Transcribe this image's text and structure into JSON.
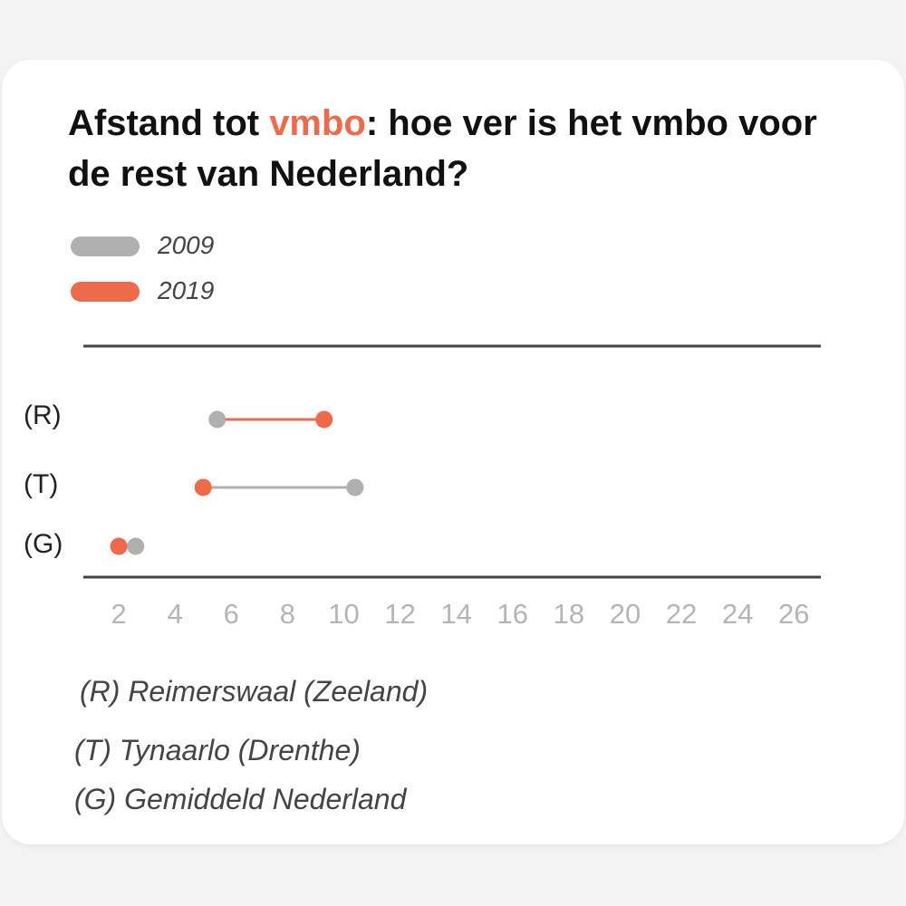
{
  "title": {
    "part1": "Afstand tot ",
    "highlight": "vmbo",
    "part2": ": hoe ver is het vmbo voor de rest van Nederland?"
  },
  "colors": {
    "accent": "#ee6a4a",
    "series_2009": "#b0b0b0",
    "series_2019": "#ee6a4a",
    "axis_line": "#444444"
  },
  "legend": [
    {
      "label": "2009",
      "color": "#b0b0b0"
    },
    {
      "label": "2019",
      "color": "#ee6a4a"
    }
  ],
  "chart_data": {
    "type": "dumbbell",
    "categories": [
      "(R)",
      "(T)",
      "(G)"
    ],
    "series": [
      {
        "name": "2009",
        "values": [
          5.5,
          10.4,
          2.6
        ]
      },
      {
        "name": "2019",
        "values": [
          9.3,
          5.0,
          2.0
        ]
      }
    ],
    "xticks": [
      2,
      4,
      6,
      8,
      10,
      12,
      14,
      16,
      18,
      20,
      22,
      24,
      26
    ],
    "xlim": [
      0,
      26.7
    ],
    "grid": false,
    "legend_position": "top-left"
  },
  "footnotes": [
    "(R) Reimerswaal (Zeeland)",
    "(T) Tynaarlo (Drenthe)",
    "(G) Gemiddeld Nederland"
  ]
}
